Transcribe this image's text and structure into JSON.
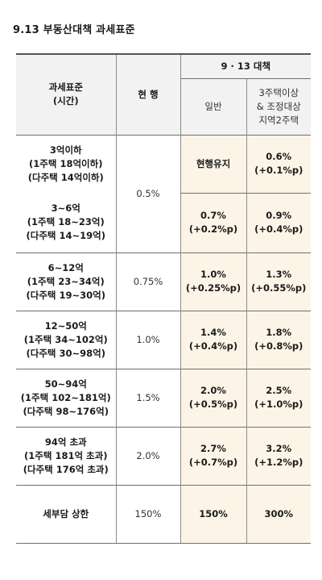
{
  "title": "9.13 부동산대책 과세표준",
  "header": {
    "col_base": [
      "과세표준",
      "(시간)"
    ],
    "col_current": "현 행",
    "col_policy": "9 · 13 대책",
    "sub_general": "일반",
    "sub_multi": [
      "3주택이상",
      "& 조정대상",
      "지역2주택"
    ]
  },
  "rows": [
    {
      "base": [
        "3억이하",
        "(1주택 18억이하)",
        "(다주택 14억이하)"
      ],
      "current": "0.5%",
      "general": "현행유지",
      "multi": [
        "0.6%",
        "(+0.1%p)"
      ]
    },
    {
      "base": [
        "3~6억",
        "(1주택 18~23억)",
        "(다주택  14~19억)"
      ],
      "current": "",
      "general": [
        "0.7%",
        "(+0.2%p)"
      ],
      "multi": [
        "0.9%",
        "(+0.4%p)"
      ]
    },
    {
      "base": [
        "6~12억",
        "(1주택 23~34억)",
        "(다주택 19~30억)"
      ],
      "current": "0.75%",
      "general": [
        "1.0%",
        "(+0.25%p)"
      ],
      "multi": [
        "1.3%",
        "(+0.55%p)"
      ]
    },
    {
      "base": [
        "12~50억",
        "(1주택 34~102억)",
        "(다주택 30~98억)"
      ],
      "current": "1.0%",
      "general": [
        "1.4%",
        "(+0.4%p)"
      ],
      "multi": [
        "1.8%",
        "(+0.8%p)"
      ]
    },
    {
      "base": [
        "50~94억",
        "(1주택 102~181억)",
        "(다주택 98~176억)"
      ],
      "current": "1.5%",
      "general": [
        "2.0%",
        "(+0.5%p)"
      ],
      "multi": [
        "2.5%",
        "(+1.0%p)"
      ]
    },
    {
      "base": [
        "94억 초과",
        "(1주택 181억 초과)",
        "(다주택 176억 초과)"
      ],
      "current": "2.0%",
      "general": [
        "2.7%",
        "(+0.7%p)"
      ],
      "multi": [
        "3.2%",
        "(+1.2%p)"
      ]
    },
    {
      "base": [
        "세부담 상한"
      ],
      "current": "150%",
      "general": "150%",
      "multi": "300%"
    }
  ]
}
